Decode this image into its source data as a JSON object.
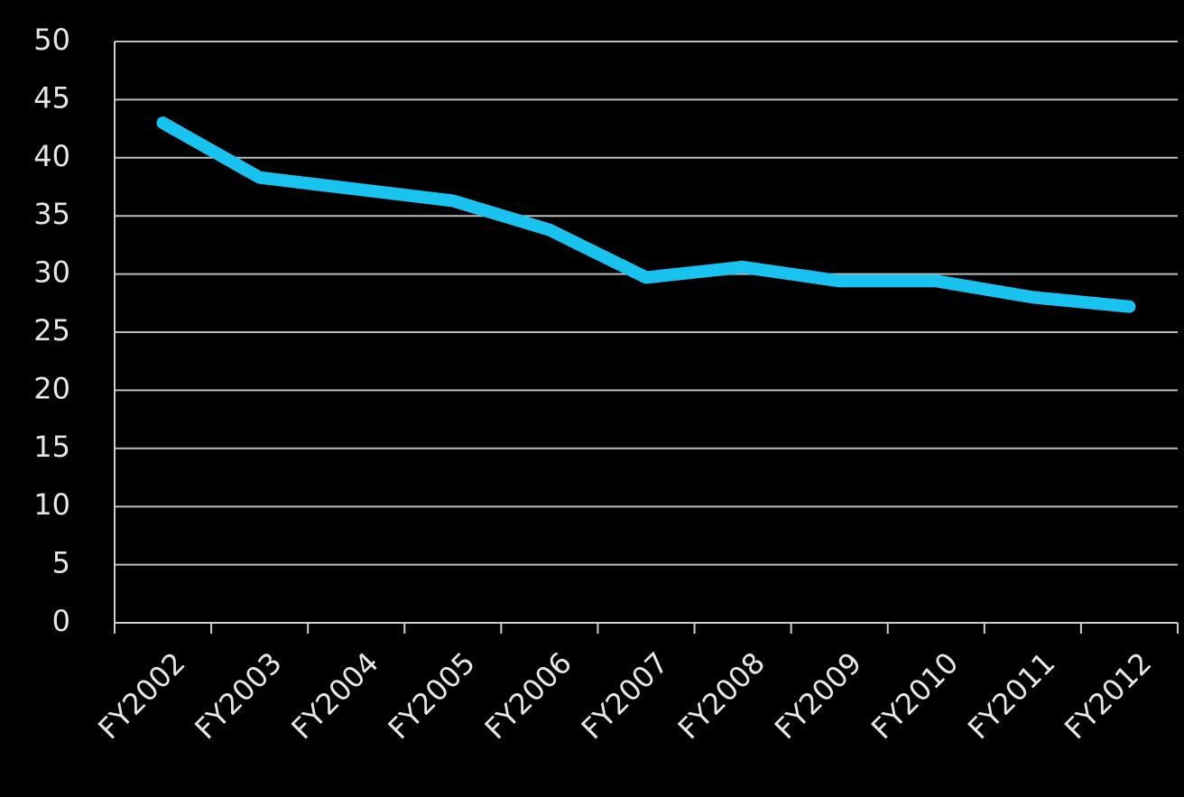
{
  "chart_data": {
    "type": "line",
    "categories": [
      "FY2002",
      "FY2003",
      "FY2004",
      "FY2005",
      "FY2006",
      "FY2007",
      "FY2008",
      "FY2009",
      "FY2010",
      "FY2011",
      "FY2012"
    ],
    "series": [
      {
        "color": "#19c3f0",
        "values": [
          43.0,
          38.3,
          37.3,
          36.3,
          33.8,
          29.7,
          30.6,
          29.4,
          29.4,
          28.0,
          27.2
        ]
      }
    ],
    "ylim": [
      0,
      50
    ],
    "yticks": [
      0,
      5,
      10,
      15,
      20,
      25,
      30,
      35,
      40,
      45,
      50
    ],
    "grid": true
  }
}
